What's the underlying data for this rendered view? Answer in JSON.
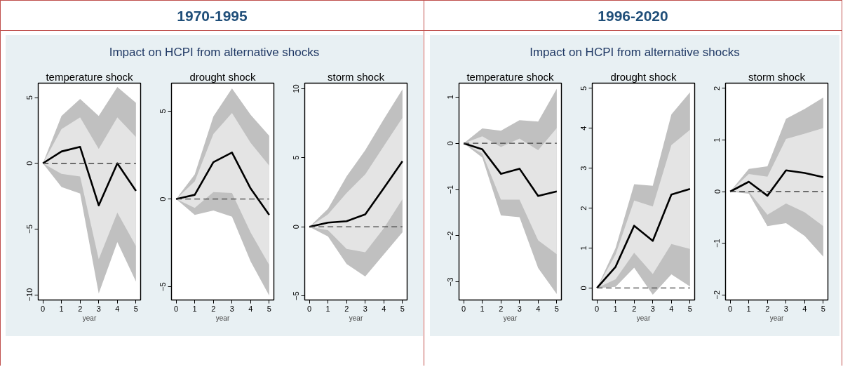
{
  "chart_data": [
    {
      "type": "line",
      "title": "temperature shock",
      "xlabel": "year",
      "annotations": [
        "1970-1995",
        "Impact on HCPI from alternative shocks"
      ],
      "x": [
        0,
        1,
        2,
        3,
        4,
        5
      ],
      "xlim": [
        -0.25,
        5.25
      ],
      "xticks": [
        0,
        1,
        2,
        3,
        4,
        5
      ],
      "ylim": [
        -10.4,
        6.1
      ],
      "yticks": [
        -10,
        -5,
        0,
        5
      ],
      "series": [
        {
          "color": "#c0c0c0",
          "values": [
            null,
            null,
            null,
            null,
            null,
            null
          ],
          "lower": [
            0,
            -1.8,
            -2.3,
            -9.9,
            -6.0,
            -9.0
          ],
          "upper": [
            0,
            3.6,
            4.9,
            3.6,
            5.8,
            4.6
          ]
        },
        {
          "color": "#e4e4e4",
          "values": [
            null,
            null,
            null,
            null,
            null,
            null
          ],
          "lower": [
            0,
            -0.8,
            -1.0,
            -7.3,
            -3.75,
            -6.3
          ],
          "upper": [
            0,
            2.6,
            3.5,
            1.1,
            3.5,
            2.0
          ]
        },
        {
          "type": "line",
          "color": "#000000",
          "values": [
            0,
            0.9,
            1.25,
            -3.2,
            0,
            -2.1
          ]
        }
      ],
      "ref_lines": [
        {
          "axis": "y",
          "value": 0,
          "color": "#444444",
          "line_style": "dashed"
        }
      ]
    },
    {
      "type": "line",
      "title": "drought shock",
      "xlabel": "year",
      "x": [
        0,
        1,
        2,
        3,
        4,
        5
      ],
      "xlim": [
        -0.25,
        5.25
      ],
      "xticks": [
        0,
        1,
        2,
        3,
        4,
        5
      ],
      "ylim": [
        -5.75,
        6.6
      ],
      "yticks": [
        -5,
        0,
        5
      ],
      "series": [
        {
          "color": "#c0c0c0",
          "values": [
            null,
            null,
            null,
            null,
            null,
            null
          ],
          "lower": [
            0,
            -0.9,
            -0.65,
            -1.0,
            -3.55,
            -5.5
          ],
          "upper": [
            0,
            1.4,
            4.7,
            6.3,
            4.8,
            3.6
          ]
        },
        {
          "color": "#e4e4e4",
          "values": [
            null,
            null,
            null,
            null,
            null,
            null
          ],
          "lower": [
            0,
            -0.5,
            0.4,
            0.35,
            -1.9,
            -3.75
          ],
          "upper": [
            0,
            1.0,
            3.7,
            4.9,
            3.2,
            1.9
          ]
        },
        {
          "type": "line",
          "color": "#000000",
          "values": [
            0,
            0.24,
            2.1,
            2.65,
            0.6,
            -0.9
          ]
        }
      ],
      "ref_lines": [
        {
          "axis": "y",
          "value": 0,
          "color": "#444444",
          "line_style": "dashed"
        }
      ]
    },
    {
      "type": "line",
      "title": "storm shock",
      "xlabel": "year",
      "x": [
        0,
        1,
        2,
        3,
        4,
        5
      ],
      "xlim": [
        -0.25,
        5.25
      ],
      "xticks": [
        0,
        1,
        2,
        3,
        4,
        5
      ],
      "ylim": [
        -5.3,
        10.4
      ],
      "yticks": [
        -5,
        0,
        5,
        10
      ],
      "series": [
        {
          "color": "#c0c0c0",
          "values": [
            null,
            null,
            null,
            null,
            null,
            null
          ],
          "lower": [
            0,
            -0.7,
            -2.7,
            -3.6,
            -2.0,
            -0.4
          ],
          "upper": [
            0,
            1.3,
            3.65,
            5.55,
            7.8,
            9.95
          ]
        },
        {
          "color": "#e4e4e4",
          "values": [
            null,
            null,
            null,
            null,
            null,
            null
          ],
          "lower": [
            0,
            -0.25,
            -1.6,
            -1.85,
            -0.1,
            2.0
          ],
          "upper": [
            0,
            0.9,
            2.45,
            3.8,
            5.85,
            7.9
          ]
        },
        {
          "type": "line",
          "color": "#000000",
          "values": [
            0,
            0.3,
            0.4,
            0.9,
            2.8,
            4.75
          ]
        }
      ],
      "ref_lines": [
        {
          "axis": "y",
          "value": 0,
          "color": "#444444",
          "line_style": "dashed"
        }
      ]
    },
    {
      "type": "line",
      "title": "temperature shock",
      "xlabel": "year",
      "annotations": [
        "1996-2020",
        "Impact on HCPI from alternative shocks"
      ],
      "x": [
        0,
        1,
        2,
        3,
        4,
        5
      ],
      "xlim": [
        -0.25,
        5.25
      ],
      "xticks": [
        0,
        1,
        2,
        3,
        4,
        5
      ],
      "ylim": [
        -3.39,
        1.3
      ],
      "yticks": [
        -3,
        -2,
        -1,
        0,
        1
      ],
      "series": [
        {
          "color": "#c0c0c0",
          "values": [
            null,
            null,
            null,
            null,
            null,
            null
          ],
          "lower": [
            0,
            -0.31,
            -1.56,
            -1.6,
            -2.7,
            -3.26
          ],
          "upper": [
            0,
            0.32,
            0.27,
            0.5,
            0.47,
            1.18
          ]
        },
        {
          "color": "#e4e4e4",
          "values": [
            null,
            null,
            null,
            null,
            null,
            null
          ],
          "lower": [
            0,
            -0.22,
            -1.22,
            -1.22,
            -2.1,
            -2.4
          ],
          "upper": [
            0,
            0.15,
            -0.08,
            0.1,
            -0.15,
            0.33
          ]
        },
        {
          "type": "line",
          "color": "#000000",
          "values": [
            0,
            -0.13,
            -0.66,
            -0.55,
            -1.14,
            -1.04
          ]
        }
      ],
      "ref_lines": [
        {
          "axis": "y",
          "value": 0,
          "color": "#444444",
          "line_style": "dashed"
        }
      ]
    },
    {
      "type": "line",
      "title": "drought shock",
      "xlabel": "year",
      "x": [
        0,
        1,
        2,
        3,
        4,
        5
      ],
      "xlim": [
        -0.25,
        5.25
      ],
      "xticks": [
        0,
        1,
        2,
        3,
        4,
        5
      ],
      "ylim": [
        -0.3,
        5.13
      ],
      "yticks": [
        0,
        1,
        2,
        3,
        4,
        5
      ],
      "series": [
        {
          "color": "#c0c0c0",
          "values": [
            null,
            null,
            null,
            null,
            null,
            null
          ],
          "lower": [
            0,
            0.03,
            0.51,
            -0.17,
            0.34,
            0.04
          ],
          "upper": [
            0,
            1.0,
            2.6,
            2.56,
            4.35,
            4.9
          ]
        },
        {
          "color": "#e4e4e4",
          "values": [
            null,
            null,
            null,
            null,
            null,
            null
          ],
          "lower": [
            0,
            0.22,
            0.88,
            0.35,
            1.1,
            0.98
          ],
          "upper": [
            0,
            0.84,
            2.19,
            2.04,
            3.58,
            3.96
          ]
        },
        {
          "type": "line",
          "color": "#000000",
          "values": [
            0,
            0.53,
            1.56,
            1.18,
            2.34,
            2.48
          ]
        }
      ],
      "ref_lines": [
        {
          "axis": "y",
          "value": 0,
          "color": "#444444",
          "line_style": "dashed"
        }
      ]
    },
    {
      "type": "line",
      "title": "storm shock",
      "xlabel": "year",
      "x": [
        0,
        1,
        2,
        3,
        4,
        5
      ],
      "xlim": [
        -0.25,
        5.25
      ],
      "xticks": [
        0,
        1,
        2,
        3,
        4,
        5
      ],
      "ylim": [
        -2.1,
        2.1
      ],
      "yticks": [
        -2,
        -1,
        0,
        1,
        2
      ],
      "series": [
        {
          "color": "#c0c0c0",
          "values": [
            null,
            null,
            null,
            null,
            null,
            null
          ],
          "lower": [
            0,
            -0.04,
            -0.67,
            -0.61,
            -0.86,
            -1.26
          ],
          "upper": [
            0,
            0.44,
            0.49,
            1.41,
            1.6,
            1.82
          ]
        },
        {
          "color": "#e4e4e4",
          "values": [
            null,
            null,
            null,
            null,
            null,
            null
          ],
          "lower": [
            0,
            0.0,
            -0.45,
            -0.23,
            -0.4,
            -0.67
          ],
          "upper": [
            0,
            0.34,
            0.29,
            1.02,
            1.12,
            1.23
          ]
        },
        {
          "type": "line",
          "color": "#000000",
          "values": [
            0,
            0.19,
            -0.08,
            0.41,
            0.36,
            0.28
          ]
        }
      ],
      "ref_lines": [
        {
          "axis": "y",
          "value": 0,
          "color": "#444444",
          "line_style": "dashed"
        }
      ]
    }
  ]
}
